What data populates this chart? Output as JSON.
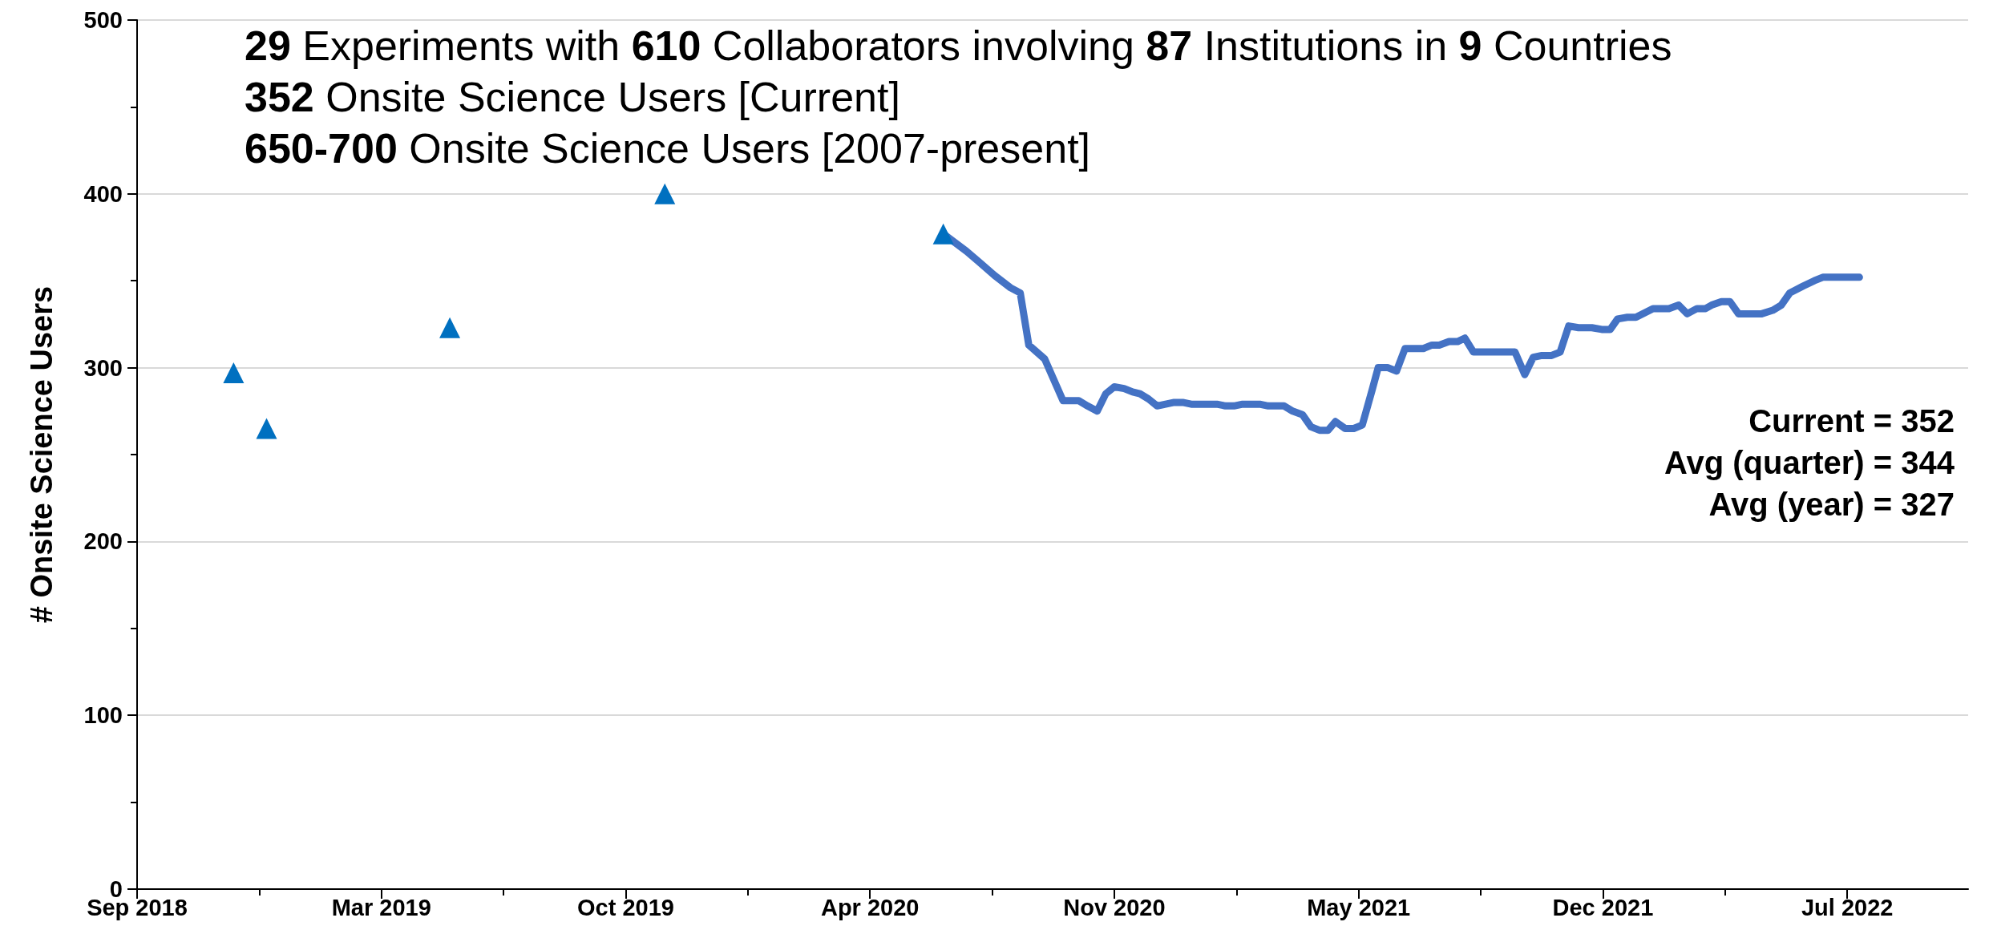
{
  "chart_data": {
    "type": "line",
    "title": "29 Experiments with 610 Collaborators involving 87 Institutions in 9 Countries",
    "subtitle": "352 Onsite Science Users [Current]\n650-700 Onsite Science Users [2007-present]",
    "ylabel": "# Onsite Science Users",
    "annotations": [
      "Current = 352",
      "Avg (quarter) = 344",
      "Avg (year) = 327"
    ],
    "xlim": [
      "2018-09-01",
      "2022-10-09"
    ],
    "xticks": [
      {
        "value": "2018-09-01",
        "label": "Sep 2018"
      },
      {
        "value": "2018-12-10",
        "label": null
      },
      {
        "value": "2019-03-20",
        "label": "Mar 2019"
      },
      {
        "value": "2019-06-28",
        "label": null
      },
      {
        "value": "2019-10-06",
        "label": "Oct 2019"
      },
      {
        "value": "2020-01-14",
        "label": null
      },
      {
        "value": "2020-04-23",
        "label": "Apr 2020"
      },
      {
        "value": "2020-08-01",
        "label": null
      },
      {
        "value": "2020-11-09",
        "label": "Nov 2020"
      },
      {
        "value": "2021-02-17",
        "label": null
      },
      {
        "value": "2021-05-28",
        "label": "May 2021"
      },
      {
        "value": "2021-09-05",
        "label": null
      },
      {
        "value": "2021-12-14",
        "label": "Dec 2021"
      },
      {
        "value": "2022-03-24",
        "label": null
      },
      {
        "value": "2022-07-02",
        "label": "Jul 2022"
      }
    ],
    "ylim": [
      0,
      500
    ],
    "yticks": [
      0,
      {
        "value": 50,
        "label": null
      },
      100,
      {
        "value": 150,
        "label": null
      },
      200,
      {
        "value": 250,
        "label": null
      },
      300,
      {
        "value": 350,
        "label": null
      },
      400,
      {
        "value": 450,
        "label": null
      },
      500
    ],
    "grid": "y",
    "series": [
      {
        "type": "scatter",
        "marker": "triangle",
        "color": "#0070c0",
        "x": [
          "2018-11-19",
          "2018-12-16",
          "2019-05-15",
          "2019-11-07",
          "2020-06-22"
        ],
        "values": [
          297,
          265,
          323,
          400,
          377
        ]
      },
      {
        "marker": "none",
        "line_style": "solid",
        "color": "#4472c4",
        "x": [
          "2020-06-22",
          "2020-07-11",
          "2020-07-21",
          "2020-08-03",
          "2020-08-16",
          "2020-08-24",
          "2020-08-31",
          "2020-09-13",
          "2020-09-28",
          "2020-10-11",
          "2020-10-18",
          "2020-10-26",
          "2020-11-02",
          "2020-11-09",
          "2020-11-17",
          "2020-11-24",
          "2020-11-30",
          "2020-12-07",
          "2020-12-14",
          "2020-12-28",
          "2021-01-04",
          "2021-01-11",
          "2021-02-01",
          "2021-02-08",
          "2021-02-15",
          "2021-02-22",
          "2021-03-08",
          "2021-03-15",
          "2021-03-28",
          "2021-04-04",
          "2021-04-12",
          "2021-04-19",
          "2021-04-26",
          "2021-05-03",
          "2021-05-09",
          "2021-05-17",
          "2021-05-24",
          "2021-05-31",
          "2021-06-08",
          "2021-06-13",
          "2021-06-21",
          "2021-06-28",
          "2021-07-05",
          "2021-07-20",
          "2021-07-27",
          "2021-08-02",
          "2021-08-10",
          "2021-08-17",
          "2021-08-23",
          "2021-08-30",
          "2021-10-03",
          "2021-10-11",
          "2021-10-18",
          "2021-10-25",
          "2021-11-02",
          "2021-11-09",
          "2021-11-16",
          "2021-11-24",
          "2021-12-05",
          "2021-12-13",
          "2021-12-20",
          "2021-12-26",
          "2022-01-03",
          "2022-01-10",
          "2022-01-24",
          "2022-02-06",
          "2022-02-14",
          "2022-02-21",
          "2022-03-01",
          "2022-03-08",
          "2022-03-13",
          "2022-03-21",
          "2022-03-28",
          "2022-04-04",
          "2022-04-23",
          "2022-05-02",
          "2022-05-09",
          "2022-05-16",
          "2022-05-27",
          "2022-06-05",
          "2022-06-12",
          "2022-07-12"
        ],
        "values": [
          377,
          367,
          361,
          353,
          346,
          343,
          313,
          305,
          281,
          281,
          278,
          275,
          285,
          289,
          288,
          286,
          285,
          282,
          278,
          280,
          280,
          279,
          279,
          278,
          278,
          279,
          279,
          278,
          278,
          275,
          273,
          266,
          264,
          264,
          269,
          265,
          265,
          267,
          287,
          300,
          300,
          298,
          311,
          311,
          313,
          313,
          315,
          315,
          317,
          309,
          309,
          296,
          306,
          307,
          307,
          309,
          324,
          323,
          323,
          322,
          322,
          328,
          329,
          329,
          334,
          334,
          336,
          331,
          334,
          334,
          336,
          338,
          338,
          331,
          331,
          333,
          336,
          343,
          347,
          350,
          352,
          352
        ]
      }
    ]
  }
}
